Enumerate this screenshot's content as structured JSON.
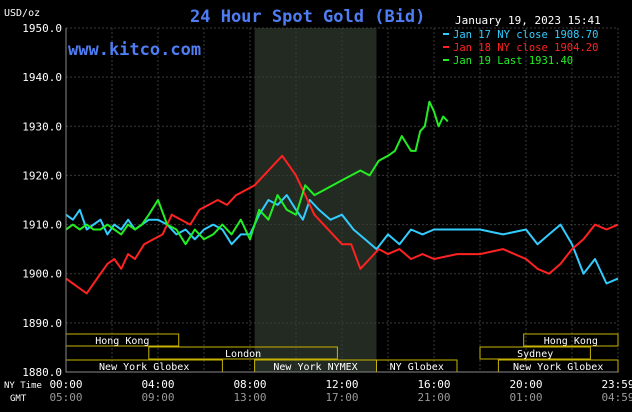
{
  "chart_data": {
    "type": "line",
    "title": "24 Hour Spot Gold (Bid)",
    "site": "www.kitco.com",
    "ylabel": "USD/oz",
    "timestamp": "January 19, 2023 15:41",
    "ylim": [
      1880,
      1950
    ],
    "xlim": [
      0,
      24
    ],
    "y_ticks": [
      1880,
      1890,
      1900,
      1910,
      1920,
      1930,
      1940,
      1950
    ],
    "y_tick_labels": [
      "1880.0",
      "1890.0",
      "1900.0",
      "1910.0",
      "1920.0",
      "1930.0",
      "1940.0",
      "1950.0"
    ],
    "x_ticks": [
      0,
      4,
      8,
      12,
      16,
      20,
      24
    ],
    "x_tick_labels_ny": [
      "00:00",
      "04:00",
      "08:00",
      "12:00",
      "16:00",
      "20:00",
      "23:59"
    ],
    "x_tick_labels_gmt": [
      "05:00",
      "09:00",
      "13:00",
      "17:00",
      "21:00",
      "01:00",
      "04:59"
    ],
    "row_label_ny": "NY Time",
    "row_label_gmt": "GMT",
    "grid": true,
    "legend": "top-right",
    "series": [
      {
        "name": "Jan 17 NY close 1908.70",
        "color": "#33ccff",
        "x": [
          0,
          0.3,
          0.6,
          0.9,
          1.2,
          1.5,
          1.8,
          2.1,
          2.4,
          2.7,
          3.0,
          3.3,
          3.6,
          4.0,
          4.4,
          4.8,
          5.2,
          5.6,
          6.0,
          6.4,
          6.8,
          7.2,
          7.6,
          8.0,
          8.4,
          8.8,
          9.2,
          9.6,
          10.0,
          10.3,
          10.6,
          11.0,
          11.5,
          12.0,
          12.5,
          13.0,
          13.5,
          14.0,
          14.5,
          15.0,
          15.5,
          16.0,
          17.0,
          18.0,
          19.0,
          20.0,
          20.5,
          21.0,
          21.5,
          22.0,
          22.5,
          23.0,
          23.5,
          24.0
        ],
        "values": [
          1912,
          1911,
          1913,
          1909,
          1910,
          1911,
          1908,
          1910,
          1909,
          1911,
          1909,
          1910,
          1911,
          1911,
          1910,
          1908,
          1909,
          1907,
          1909,
          1910,
          1909,
          1906,
          1908,
          1908,
          1912,
          1915,
          1914,
          1916,
          1913,
          1911,
          1915,
          1913,
          1911,
          1912,
          1909,
          1907,
          1905,
          1908,
          1906,
          1909,
          1908,
          1909,
          1909,
          1909,
          1908,
          1909,
          1906,
          1908,
          1910,
          1906,
          1900,
          1903,
          1898,
          1899
        ]
      },
      {
        "name": "Jan 18 NY close 1904.20",
        "color": "#ff2222",
        "x": [
          0,
          0.3,
          0.6,
          0.9,
          1.2,
          1.5,
          1.8,
          2.1,
          2.4,
          2.7,
          3.0,
          3.4,
          3.8,
          4.2,
          4.6,
          5.0,
          5.4,
          5.8,
          6.2,
          6.6,
          7.0,
          7.4,
          7.8,
          8.2,
          8.6,
          9.0,
          9.4,
          9.7,
          10.0,
          10.4,
          10.8,
          11.2,
          11.6,
          12.0,
          12.4,
          12.8,
          13.2,
          13.6,
          14.0,
          14.5,
          15.0,
          15.5,
          16.0,
          17.0,
          18.0,
          19.0,
          19.5,
          20.0,
          20.5,
          21.0,
          21.5,
          22.0,
          22.5,
          23.0,
          23.5,
          24.0
        ],
        "values": [
          1899,
          1898,
          1897,
          1896,
          1898,
          1900,
          1902,
          1903,
          1901,
          1904,
          1903,
          1906,
          1907,
          1908,
          1912,
          1911,
          1910,
          1913,
          1914,
          1915,
          1914,
          1916,
          1917,
          1918,
          1920,
          1922,
          1924,
          1922,
          1920,
          1916,
          1912,
          1910,
          1908,
          1906,
          1906,
          1901,
          1903,
          1905,
          1904,
          1905,
          1903,
          1904,
          1903,
          1904,
          1904,
          1905,
          1904,
          1903,
          1901,
          1900,
          1902,
          1905,
          1907,
          1910,
          1909,
          1910
        ]
      },
      {
        "name": "Jan 19 Last 1931.40",
        "color": "#22ee22",
        "x": [
          0,
          0.3,
          0.6,
          0.9,
          1.2,
          1.5,
          1.8,
          2.1,
          2.4,
          2.7,
          3.0,
          3.3,
          3.6,
          4.0,
          4.4,
          4.8,
          5.2,
          5.6,
          6.0,
          6.4,
          6.8,
          7.2,
          7.6,
          8.0,
          8.4,
          8.8,
          9.2,
          9.6,
          10.0,
          10.4,
          10.8,
          11.2,
          11.6,
          12.0,
          12.4,
          12.8,
          13.2,
          13.6,
          14.0,
          14.3,
          14.6,
          15.0,
          15.2,
          15.4,
          15.6,
          15.8,
          16.0,
          16.2,
          16.4,
          16.6
        ],
        "values": [
          1909,
          1910,
          1909,
          1910,
          1909,
          1909,
          1910,
          1909,
          1908,
          1910,
          1909,
          1910,
          1912,
          1915,
          1910,
          1909,
          1906,
          1909,
          1907,
          1908,
          1910,
          1908,
          1911,
          1907,
          1913,
          1911,
          1916,
          1913,
          1912,
          1918,
          1916,
          1917,
          1918,
          1919,
          1920,
          1921,
          1920,
          1923,
          1924,
          1925,
          1928,
          1925,
          1925,
          1929,
          1930,
          1935,
          1933,
          1930,
          1932,
          1931
        ]
      }
    ],
    "sessions": [
      {
        "label": "Hong Kong",
        "row": 0,
        "x0": 0,
        "x1": 4.9
      },
      {
        "label": "London",
        "row": 1,
        "x0": 3.6,
        "x1": 11.8
      },
      {
        "label": "New York Globex",
        "row": 2,
        "x0": 0,
        "x1": 6.8
      },
      {
        "label": "New York NYMEX",
        "row": 2,
        "x0": 8.2,
        "x1": 13.5
      },
      {
        "label": "NY Globex",
        "row": 2,
        "x0": 13.5,
        "x1": 17.0
      },
      {
        "label": "Hong Kong",
        "row": 0,
        "x0": 19.9,
        "x1": 24
      },
      {
        "label": "Sydney",
        "row": 1,
        "x0": 18.0,
        "x1": 22.8
      },
      {
        "label": "New York Globex",
        "row": 2,
        "x0": 18.8,
        "x1": 24
      }
    ],
    "session_highlight": [
      8.2,
      13.5
    ],
    "colors": {
      "background": "#000000",
      "grid": "#3a3a3a",
      "highlight": "#222a22",
      "session_box": "#c8b400",
      "title": "#4f7df3"
    }
  }
}
